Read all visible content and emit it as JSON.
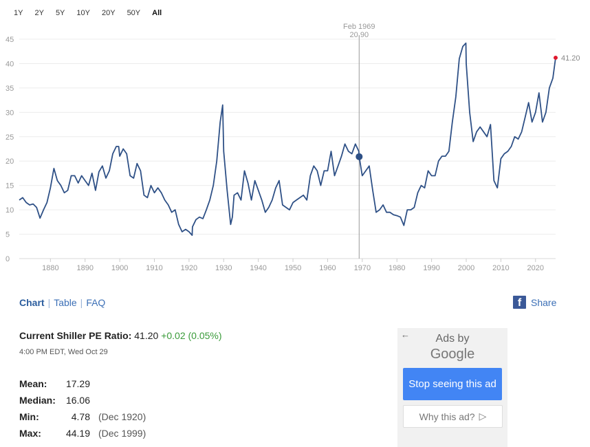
{
  "range_buttons": [
    "1Y",
    "2Y",
    "5Y",
    "10Y",
    "20Y",
    "50Y",
    "All"
  ],
  "active_range": "All",
  "tabs": {
    "chart": "Chart",
    "table": "Table",
    "faq": "FAQ"
  },
  "share": {
    "label": "Share",
    "icon": "facebook-icon"
  },
  "current": {
    "label": "Current Shiller PE Ratio:",
    "value": "41.20",
    "change": "+0.02 (0.05%)",
    "timestamp": "4:00 PM EDT, Wed Oct 29"
  },
  "stats": [
    {
      "key": "Mean:",
      "value": "17.29",
      "date": ""
    },
    {
      "key": "Median:",
      "value": "16.06",
      "date": ""
    },
    {
      "key": "Min:",
      "value": "4.78",
      "date": "(Dec 1920)"
    },
    {
      "key": "Max:",
      "value": "44.19",
      "date": "(Dec 1999)"
    }
  ],
  "ad": {
    "back_icon": "arrow-left-icon",
    "ads_by": "Ads by",
    "brand": "Google",
    "stop": "Stop seeing this ad",
    "why": "Why this ad?",
    "why_icon": "play-outline-icon"
  },
  "chart_data": {
    "type": "line",
    "title": "",
    "xlabel": "",
    "ylabel": "",
    "xlim": [
      1871,
      2025.8
    ],
    "ylim": [
      0,
      45
    ],
    "xticks": [
      1880,
      1890,
      1900,
      1910,
      1920,
      1930,
      1940,
      1950,
      1960,
      1970,
      1980,
      1990,
      2000,
      2010,
      2020
    ],
    "yticks": [
      0,
      5,
      10,
      15,
      20,
      25,
      30,
      35,
      40,
      45
    ],
    "grid": "horizontal",
    "line_color": "#2e5086",
    "tooltip": {
      "date": "Feb 1969",
      "value": "20.90",
      "x": 1969.1,
      "y": 20.9
    },
    "last_point": {
      "label": "41.20",
      "x": 2025.8,
      "y": 41.2,
      "color": "#e0182d"
    },
    "series": [
      {
        "x": [
          1871,
          1872,
          1873,
          1874,
          1875,
          1876,
          1877,
          1878,
          1879,
          1880,
          1881,
          1882,
          1883,
          1884,
          1885,
          1886,
          1887,
          1888,
          1889,
          1890,
          1891,
          1892,
          1893,
          1894,
          1895,
          1896,
          1897,
          1898,
          1899,
          1899.7,
          1900,
          1901,
          1902,
          1903,
          1904,
          1905,
          1906,
          1907,
          1908,
          1909,
          1910,
          1911,
          1912,
          1913,
          1914,
          1915,
          1916,
          1917,
          1918,
          1919,
          1920,
          1920.9,
          1921,
          1922,
          1923,
          1924,
          1925,
          1926,
          1927,
          1928,
          1929,
          1929.7,
          1930,
          1931,
          1932,
          1932.5,
          1933,
          1934,
          1935,
          1936,
          1937,
          1938,
          1939,
          1940,
          1941,
          1942,
          1943,
          1944,
          1945,
          1946,
          1947,
          1948,
          1949,
          1950,
          1951,
          1952,
          1953,
          1954,
          1955,
          1956,
          1957,
          1958,
          1959,
          1960,
          1961,
          1962,
          1963,
          1964,
          1965,
          1966,
          1967,
          1968,
          1969,
          1969.1,
          1970,
          1971,
          1972,
          1973,
          1974,
          1975,
          1976,
          1977,
          1978,
          1979,
          1980,
          1981,
          1982,
          1983,
          1984,
          1985,
          1986,
          1987,
          1988,
          1989,
          1990,
          1991,
          1992,
          1993,
          1994,
          1995,
          1996,
          1997,
          1998,
          1999,
          1999.9,
          2000,
          2001,
          2002,
          2003,
          2004,
          2005,
          2006,
          2007,
          2008,
          2009,
          2010,
          2011,
          2012,
          2013,
          2014,
          2015,
          2016,
          2017,
          2018,
          2019,
          2020,
          2021,
          2022,
          2023,
          2024,
          2025,
          2025.8
        ],
        "y": [
          12,
          12.5,
          11.5,
          11,
          11.2,
          10.5,
          8.3,
          10,
          11.5,
          14.5,
          18.5,
          16,
          15,
          13.5,
          14,
          17,
          17,
          15.5,
          17,
          16,
          15,
          17.5,
          14,
          17.8,
          19,
          16.5,
          18,
          21.5,
          23,
          23,
          21,
          22.5,
          21.5,
          17,
          16.5,
          19.5,
          18,
          13,
          12.5,
          15,
          13.5,
          14.5,
          13.5,
          12,
          11,
          9.5,
          10,
          7,
          5.5,
          6,
          5.5,
          4.78,
          6.5,
          8,
          8.5,
          8.2,
          10,
          12,
          15,
          20,
          28,
          31.5,
          22,
          14,
          7,
          8.5,
          13,
          13.5,
          12,
          18,
          15.5,
          12,
          16,
          14,
          12,
          9.5,
          10.5,
          12,
          14.5,
          16,
          11,
          10.5,
          10,
          11.5,
          12,
          12.5,
          13,
          12,
          17,
          19,
          18,
          15,
          18,
          18,
          22,
          17,
          19,
          21,
          23.5,
          22,
          21.5,
          23.5,
          22,
          20.9,
          17,
          18,
          19,
          14,
          9.5,
          10,
          11,
          9.5,
          9.5,
          9,
          8.8,
          8.5,
          6.8,
          10,
          10,
          10.5,
          13.5,
          15,
          14.5,
          18,
          17,
          17,
          20,
          21,
          21,
          22,
          28,
          33.2,
          41,
          43.5,
          44.19,
          40,
          30,
          24,
          26,
          27,
          26,
          25,
          27.5,
          16,
          14.5,
          20.5,
          21.5,
          22,
          23,
          25,
          24.5,
          26,
          29,
          32,
          28,
          30,
          34,
          28,
          30,
          35,
          37,
          41.2
        ]
      }
    ]
  }
}
